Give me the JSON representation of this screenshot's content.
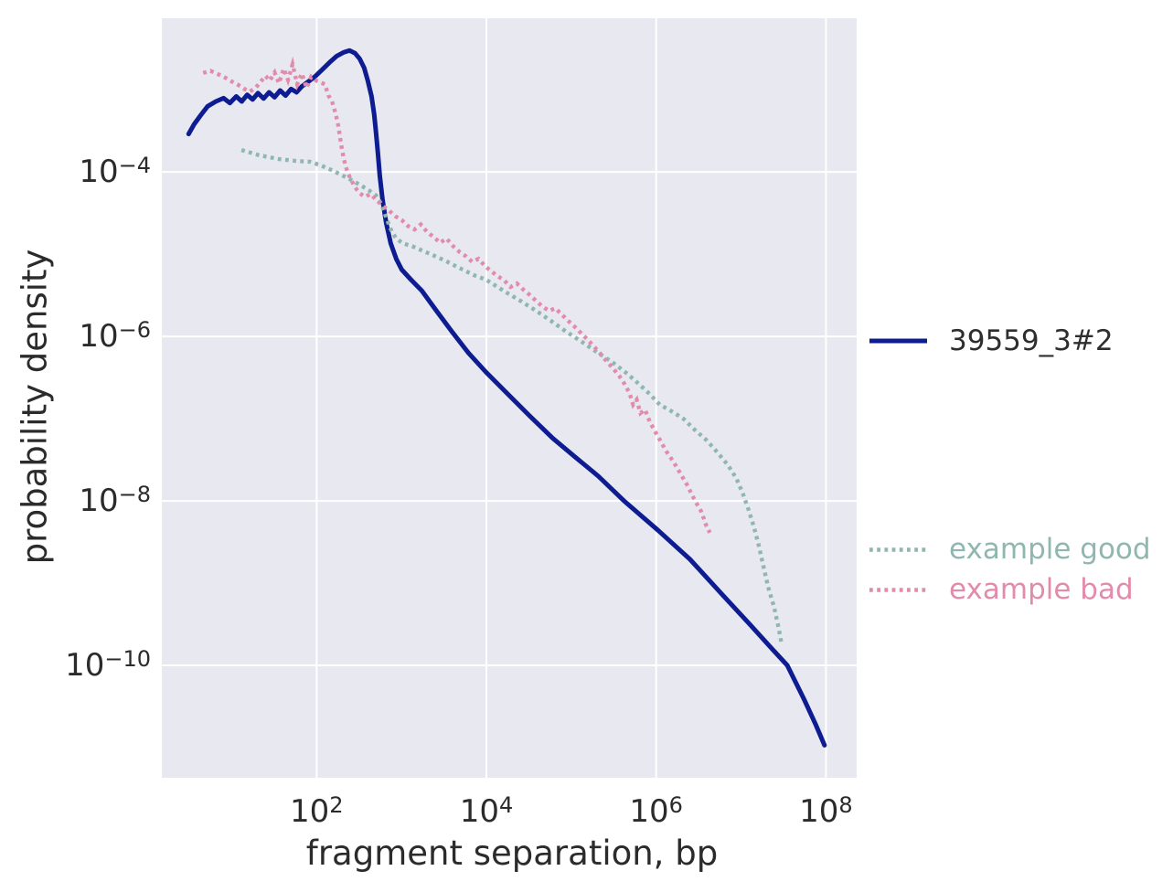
{
  "figure": {
    "background": "#ffffff",
    "plot_background": "#e8e8f1",
    "grid_color": "#ffffff",
    "text_color": "#2b2b2b",
    "main_legend_text_color": "#2e2e2e"
  },
  "axes": {
    "x_label": "fragment separation, bp",
    "y_label": "probability density",
    "x_scale": "log",
    "y_scale": "log",
    "x_tick_exponents": [
      2,
      4,
      6,
      8
    ],
    "y_tick_exponents": [
      -4,
      -6,
      -8,
      -10
    ]
  },
  "chart_data": {
    "type": "line",
    "title": "",
    "xlabel": "fragment separation, bp",
    "ylabel": "probability density",
    "x_scale": "log",
    "y_scale": "log",
    "xlim": [
      1.5,
      230000000
    ],
    "ylim": [
      4.3e-12,
      0.0074
    ],
    "grid": true,
    "grid_ticks_x": [
      100,
      10000,
      1000000,
      100000000
    ],
    "grid_ticks_y": [
      0.0001,
      1e-06,
      1e-08,
      1e-10
    ],
    "legend_position": "right-outside",
    "series": [
      {
        "name": "39559_3#2",
        "color": "#0d1c90",
        "linestyle": "solid",
        "linewidth": 5,
        "points": [
          [
            3.1,
            0.00029
          ],
          [
            3.6,
            0.00038
          ],
          [
            4.3,
            0.00049
          ],
          [
            5.2,
            0.00063
          ],
          [
            6.5,
            0.00072
          ],
          [
            8.0,
            0.00079
          ],
          [
            9.5,
            0.00069
          ],
          [
            11.3,
            0.00083
          ],
          [
            13.1,
            0.00072
          ],
          [
            15.2,
            0.00087
          ],
          [
            17.6,
            0.00076
          ],
          [
            20.4,
            0.00091
          ],
          [
            23.7,
            0.00078
          ],
          [
            27.5,
            0.00093
          ],
          [
            31.9,
            0.00081
          ],
          [
            37.1,
            0.00098
          ],
          [
            43,
            0.00085
          ],
          [
            50,
            0.00102
          ],
          [
            58,
            0.00093
          ],
          [
            67,
            0.0011
          ],
          [
            80,
            0.00126
          ],
          [
            95,
            0.00144
          ],
          [
            116,
            0.00175
          ],
          [
            142,
            0.00215
          ],
          [
            173,
            0.00257
          ],
          [
            210,
            0.00286
          ],
          [
            244,
            0.003
          ],
          [
            284,
            0.00278
          ],
          [
            321,
            0.00238
          ],
          [
            363,
            0.00185
          ],
          [
            401,
            0.00129
          ],
          [
            443,
            0.00083
          ],
          [
            477,
            0.0005
          ],
          [
            501,
            0.0003
          ],
          [
            527,
            0.000167
          ],
          [
            554,
            9e-05
          ],
          [
            597,
            4.6e-05
          ],
          [
            659,
            2.4e-05
          ],
          [
            746,
            1.35e-05
          ],
          [
            866,
            8.8e-06
          ],
          [
            1005,
            6.5e-06
          ],
          [
            1290,
            4.9e-06
          ],
          [
            1735,
            3.6e-06
          ],
          [
            2580,
            2.05e-06
          ],
          [
            3930,
            1.14e-06
          ],
          [
            6150,
            6.3e-07
          ],
          [
            9850,
            3.7e-07
          ],
          [
            17400,
            2.05e-07
          ],
          [
            32400,
            1.08e-07
          ],
          [
            60300,
            5.8e-08
          ],
          [
            112000,
            3.4e-08
          ],
          [
            208000,
            2e-08
          ],
          [
            418000,
            1e-08
          ],
          [
            1050000,
            4.4e-09
          ],
          [
            2500000,
            1.95e-09
          ],
          [
            5900000,
            7.4e-10
          ],
          [
            12500000,
            3.2e-10
          ],
          [
            23000000,
            1.6e-10
          ],
          [
            35000000,
            1e-10
          ],
          [
            55000000,
            3.9e-11
          ],
          [
            75000000,
            1.95e-11
          ],
          [
            96000000,
            1.07e-11
          ]
        ]
      },
      {
        "name": "example good",
        "color": "#8fb7b0",
        "linestyle": "dotted",
        "linewidth": 4.4,
        "points": [
          [
            13,
            0.000185
          ],
          [
            21,
            0.00016
          ],
          [
            35,
            0.000144
          ],
          [
            58,
            0.000136
          ],
          [
            84,
            0.000133
          ],
          [
            113,
            0.00012
          ],
          [
            152,
            0.000105
          ],
          [
            195,
            9.2e-05
          ],
          [
            250,
            8.1e-05
          ],
          [
            321,
            7e-05
          ],
          [
            411,
            6e-05
          ],
          [
            501,
            5.2e-05
          ],
          [
            582,
            4e-05
          ],
          [
            676,
            2.6e-05
          ],
          [
            765,
            1.9e-05
          ],
          [
            866,
            1.55e-05
          ],
          [
            1030,
            1.36e-05
          ],
          [
            1390,
            1.23e-05
          ],
          [
            2115,
            1.02e-05
          ],
          [
            3230,
            8.4e-06
          ],
          [
            4800,
            6.8e-06
          ],
          [
            7310,
            5.5e-06
          ],
          [
            9860,
            4.9e-06
          ],
          [
            16600,
            3.5e-06
          ],
          [
            25300,
            2.7e-06
          ],
          [
            38600,
            2.05e-06
          ],
          [
            57400,
            1.55e-06
          ],
          [
            87500,
            1.14e-06
          ],
          [
            133000,
            8.6e-07
          ],
          [
            198000,
            6.5e-07
          ],
          [
            302000,
            4.9e-07
          ],
          [
            461000,
            3.5e-07
          ],
          [
            637000,
            2.6e-07
          ],
          [
            857000,
            1.95e-07
          ],
          [
            1100000,
            1.48e-07
          ],
          [
            1520000,
            1.23e-07
          ],
          [
            2090000,
            1e-07
          ],
          [
            2820000,
            7.4e-08
          ],
          [
            3900000,
            5.5e-08
          ],
          [
            5250000,
            3.9e-08
          ],
          [
            7060000,
            2.7e-08
          ],
          [
            8830000,
            1.86e-08
          ],
          [
            10500000,
            1.23e-08
          ],
          [
            12200000,
            7.9e-09
          ],
          [
            14200000,
            4.8e-09
          ],
          [
            16000000,
            3e-09
          ],
          [
            18100000,
            1.7e-09
          ],
          [
            21000000,
            8.7e-10
          ],
          [
            24400000,
            5.2e-10
          ],
          [
            27600000,
            2.9e-10
          ],
          [
            29800000,
            1.9e-10
          ]
        ]
      },
      {
        "name": "example bad",
        "color": "#e28cab",
        "linestyle": "dotted",
        "linewidth": 4.4,
        "points": [
          [
            4.6,
            0.0016
          ],
          [
            5.6,
            0.0017
          ],
          [
            6.9,
            0.00155
          ],
          [
            8.4,
            0.0014
          ],
          [
            10,
            0.00126
          ],
          [
            11.8,
            0.00115
          ],
          [
            14.1,
            0.00102
          ],
          [
            16.3,
            0.00095
          ],
          [
            19,
            0.00105
          ],
          [
            22,
            0.00126
          ],
          [
            25,
            0.00148
          ],
          [
            28,
            0.00129
          ],
          [
            32,
            0.00162
          ],
          [
            36,
            0.0012
          ],
          [
            41,
            0.0018
          ],
          [
            46,
            0.00132
          ],
          [
            52,
            0.00204
          ],
          [
            59,
            0.00117
          ],
          [
            67,
            0.00158
          ],
          [
            76,
            0.00105
          ],
          [
            86,
            0.00144
          ],
          [
            98,
            0.0013
          ],
          [
            110,
            0.00123
          ],
          [
            125,
            0.00117
          ],
          [
            138,
            0.00085
          ],
          [
            152,
            0.00072
          ],
          [
            164,
            0.00055
          ],
          [
            177,
            0.0004
          ],
          [
            186,
            0.00029
          ],
          [
            195,
            0.00021
          ],
          [
            205,
            0.00016
          ],
          [
            216,
            0.000126
          ],
          [
            232,
            9.8e-05
          ],
          [
            257,
            7.9e-05
          ],
          [
            284,
            6.5e-05
          ],
          [
            321,
            5.5e-05
          ],
          [
            372,
            5e-05
          ],
          [
            432,
            5.4e-05
          ],
          [
            501,
            4.6e-05
          ],
          [
            597,
            3.9e-05
          ],
          [
            710,
            3.4e-05
          ],
          [
            845,
            2.9e-05
          ],
          [
            1005,
            2.6e-05
          ],
          [
            1195,
            2.2e-05
          ],
          [
            1420,
            2e-05
          ],
          [
            1690,
            2.3e-05
          ],
          [
            2015,
            1.85e-05
          ],
          [
            2395,
            1.62e-05
          ],
          [
            2850,
            1.38e-05
          ],
          [
            3390,
            1.55e-05
          ],
          [
            4030,
            1.26e-05
          ],
          [
            4800,
            1.07e-05
          ],
          [
            5710,
            9.5e-06
          ],
          [
            6790,
            8.1e-06
          ],
          [
            8080,
            8.8e-06
          ],
          [
            9615,
            7.2e-06
          ],
          [
            11400,
            6.2e-06
          ],
          [
            13600,
            5.4e-06
          ],
          [
            16200,
            4.8e-06
          ],
          [
            19250,
            4e-06
          ],
          [
            22900,
            4.4e-06
          ],
          [
            27250,
            3.7e-06
          ],
          [
            32400,
            3.2e-06
          ],
          [
            38600,
            2.7e-06
          ],
          [
            45900,
            2.3e-06
          ],
          [
            54600,
            2.05e-06
          ],
          [
            64900,
            2.2e-06
          ],
          [
            77200,
            1.85e-06
          ],
          [
            91900,
            1.55e-06
          ],
          [
            109000,
            1.32e-06
          ],
          [
            130000,
            1.1e-06
          ],
          [
            155000,
            9.2e-07
          ],
          [
            184000,
            7.6e-07
          ],
          [
            219000,
            6.2e-07
          ],
          [
            260000,
            5e-07
          ],
          [
            310000,
            4.1e-07
          ],
          [
            369000,
            3.3e-07
          ],
          [
            428000,
            2.6e-07
          ],
          [
            484000,
            2.05e-07
          ],
          [
            535000,
            1.48e-07
          ],
          [
            590000,
            1.7e-07
          ],
          [
            652000,
            1.17e-07
          ],
          [
            738000,
            1.29e-07
          ],
          [
            836000,
            9.3e-08
          ],
          [
            970000,
            7e-08
          ],
          [
            1130000,
            5.3e-08
          ],
          [
            1340000,
            3.9e-08
          ],
          [
            1630000,
            2.9e-08
          ],
          [
            2040000,
            1.95e-08
          ],
          [
            2370000,
            1.5e-08
          ],
          [
            2620000,
            1.2e-08
          ],
          [
            2960000,
            9.5e-09
          ],
          [
            3360000,
            7.6e-09
          ],
          [
            3620000,
            6.2e-09
          ],
          [
            3900000,
            5e-09
          ],
          [
            4300000,
            4.1e-09
          ]
        ]
      }
    ]
  }
}
